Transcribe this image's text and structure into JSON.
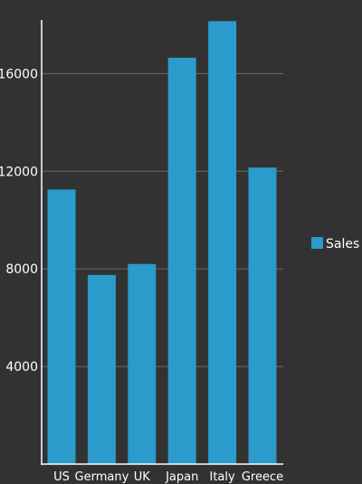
{
  "colors": {
    "background": "#323232",
    "bar": "#2b9bcb",
    "axis": "#ffffff",
    "grid": "#6a6a6a",
    "text": "#ffffff"
  },
  "chart_data": {
    "type": "bar",
    "categories": [
      "US",
      "Germany",
      "UK",
      "Japan",
      "Italy",
      "Greece"
    ],
    "series": [
      {
        "name": "Sales",
        "values": [
          11250,
          7750,
          8200,
          16650,
          18150,
          12150
        ]
      }
    ],
    "yticks": [
      4000,
      8000,
      12000,
      16000
    ],
    "ylim": [
      0,
      18200
    ],
    "grid": true,
    "legend_position": "right"
  }
}
